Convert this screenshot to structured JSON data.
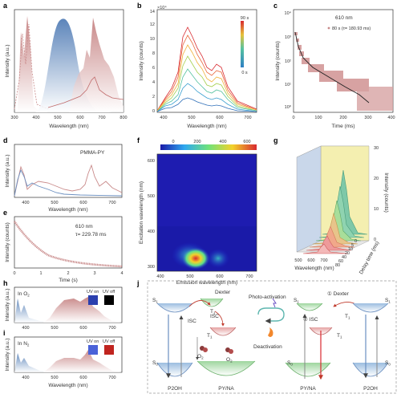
{
  "panels": {
    "a": {
      "letter": "a",
      "ylabel": "Intensity (a.u.)",
      "xlabel": "Wavelength (nm)",
      "xticks": [
        "300",
        "400",
        "500",
        "600",
        "700",
        "800"
      ]
    },
    "b": {
      "letter": "b",
      "ylabel": "Intensity (counts)",
      "xlabel": "Wavelength (nm)",
      "exponent": "×10⁴",
      "yticks": [
        "0",
        "2",
        "4",
        "6",
        "8",
        "10",
        "12",
        "14"
      ],
      "xticks": [
        "400",
        "500",
        "600",
        "700"
      ],
      "time_top": "90 s",
      "time_bottom": "0 s"
    },
    "c": {
      "letter": "c",
      "ylabel": "Intensity (counts)",
      "xlabel": "Time (ms)",
      "annotation": "610 nm",
      "legend": "80 s (τ= 180.93 ms)",
      "yticks": [
        "10⁰",
        "10¹",
        "10²",
        "10³",
        "10⁴"
      ],
      "xticks": [
        "0",
        "100",
        "200",
        "300",
        "400"
      ]
    },
    "d": {
      "letter": "d",
      "ylabel": "Intensity (a.u.)",
      "xlabel": "Wavelength (nm)",
      "label": "PMMA-PY",
      "xticks": [
        "400",
        "500",
        "600",
        "700"
      ]
    },
    "e": {
      "letter": "e",
      "ylabel": "Intensity (counts)",
      "xlabel": "Time (s)",
      "line1": "610 nm",
      "line2": "τ= 229.78 ms",
      "xticks": [
        "0",
        "1",
        "2",
        "3",
        "4"
      ]
    },
    "f": {
      "letter": "f",
      "ylabel": "Excitation wavelength (nm)",
      "xlabel": "Emission wavelength (nm)",
      "cbar_ticks": [
        "0",
        "200",
        "400",
        "600"
      ],
      "yticks": [
        "300",
        "400",
        "500",
        "600"
      ],
      "xticks": [
        "400",
        "500",
        "600",
        "700"
      ]
    },
    "g": {
      "letter": "g",
      "xlabel": "Wavelength (nm)",
      "zlabel": "Intensity (counts)",
      "depthlabel": "Delay time (ms)",
      "zticks": [
        "0",
        "10",
        "20",
        "30"
      ],
      "depthticks": [
        "0",
        "5",
        "10",
        "20",
        "40",
        "60",
        "80"
      ],
      "xticks": [
        "500",
        "600",
        "700"
      ]
    },
    "h": {
      "letter": "h",
      "ylabel": "Intensity (a.u.)",
      "env": "In O",
      "env_sub": "2",
      "uv_on": "UV on",
      "uv_off": "UV off",
      "xticks": [
        "400",
        "500",
        "600",
        "700"
      ]
    },
    "i": {
      "letter": "i",
      "ylabel": "Intensity (a.u.)",
      "xlabel": "Wavelength (nm)",
      "env": "In N",
      "env_sub": "2",
      "uv_on": "UV on",
      "uv_off": "UV off",
      "xticks": [
        "400",
        "500",
        "600",
        "700"
      ]
    },
    "j": {
      "letter": "j",
      "dexter_left": "Dexter",
      "dexter_right": "① Dexter",
      "isc": "ISC",
      "isc2": "② ISC",
      "s1": "S",
      "s1_sub": "1",
      "t1": "T",
      "t1_sub": "1",
      "s0": "S",
      "s0_sub": "0",
      "o2": "O",
      "o2_sub": "2",
      "photo": "Photo-activation",
      "deact": "Deactivation",
      "p2oh": "P2OH",
      "pyna": "PY/NA"
    }
  },
  "colors": {
    "blue": "#6b8fc0",
    "pink": "#c98a8a",
    "red": "#d8292f",
    "dash": "#d2a6a6"
  }
}
